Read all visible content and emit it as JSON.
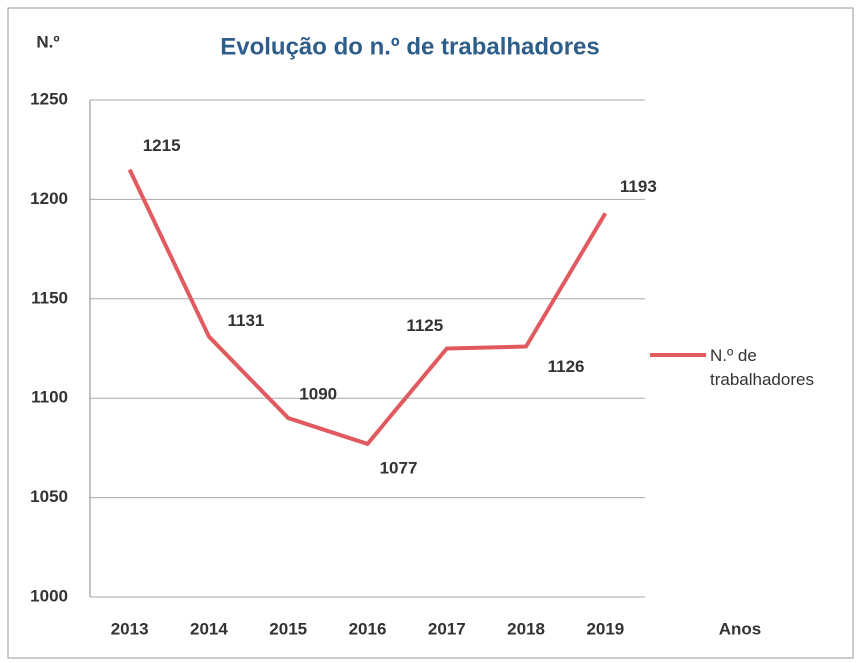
{
  "chart_data": {
    "type": "line",
    "title": "Evolução do n.º de trabalhadores",
    "y_label": "N.º",
    "x_label": "Anos",
    "categories": [
      "2013",
      "2014",
      "2015",
      "2016",
      "2017",
      "2018",
      "2019"
    ],
    "series": [
      {
        "name": "N.º de trabalhadores",
        "color": "#e05a5f",
        "values": [
          1215,
          1131,
          1090,
          1077,
          1125,
          1126,
          1193
        ]
      }
    ],
    "ylim": [
      1000,
      1250
    ],
    "yticks": [
      1000,
      1050,
      1100,
      1150,
      1200,
      1250
    ],
    "grid": true,
    "legend": "right"
  }
}
